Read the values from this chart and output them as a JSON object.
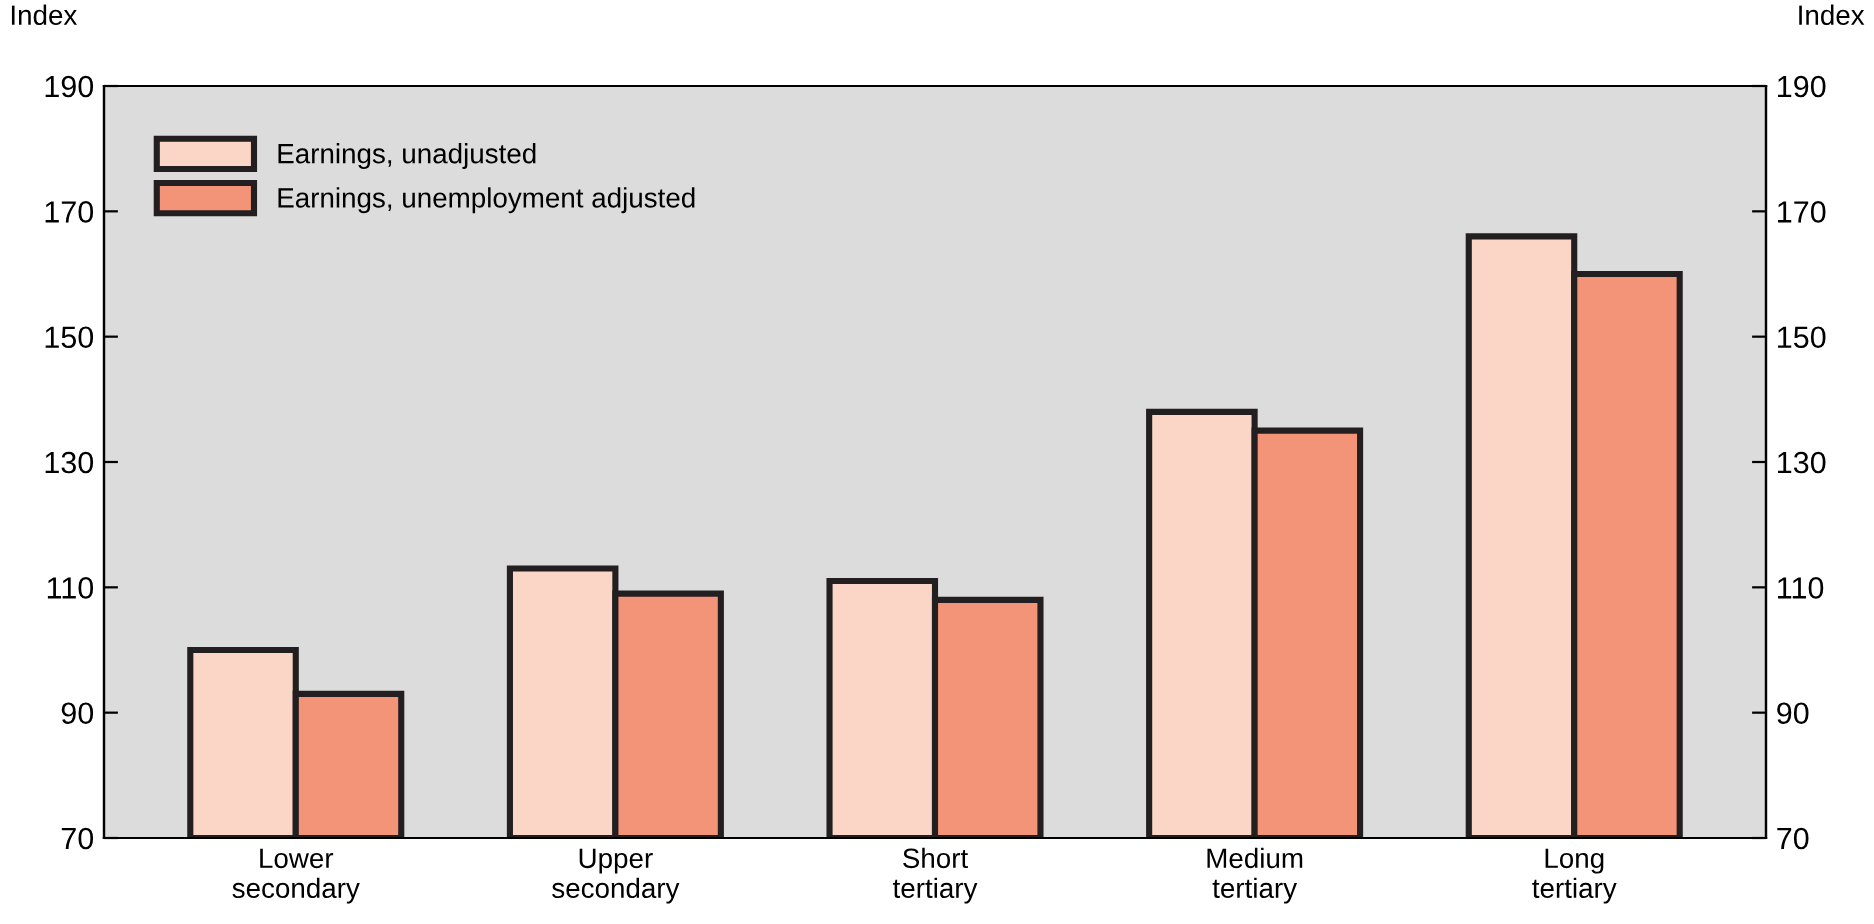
{
  "chart_data": {
    "type": "bar",
    "ylabel": "Index",
    "y2label": "Index",
    "categories": [
      "Lower\nsecondary",
      "Upper\nsecondary",
      "Short\ntertiary",
      "Medium\ntertiary",
      "Long\ntertiary"
    ],
    "series": [
      {
        "name": "Earnings, unadjusted",
        "color": "#fbd5c5",
        "values": [
          100,
          113,
          111,
          138,
          166
        ]
      },
      {
        "name": "Earnings, unemployment adjusted",
        "color": "#f39378",
        "values": [
          93,
          109,
          108,
          135,
          160
        ]
      }
    ],
    "ylim": [
      70,
      190
    ],
    "yticks": [
      70,
      90,
      110,
      130,
      150,
      170,
      190
    ],
    "y2lim": [
      70,
      190
    ],
    "y2ticks": [
      70,
      90,
      110,
      130,
      150,
      170,
      190
    ],
    "grid": false,
    "legend": "top left"
  }
}
